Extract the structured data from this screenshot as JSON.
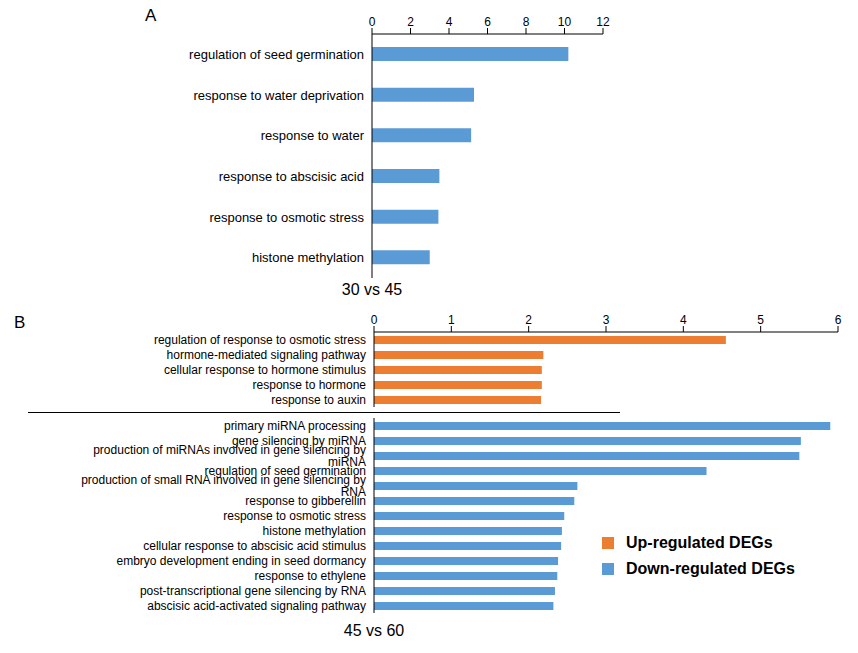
{
  "chart_data": [
    {
      "type": "bar",
      "orientation": "horizontal",
      "title": "A",
      "subtitle": "30 vs 45",
      "categories": [
        "regulation of seed germination",
        "response to water deprivation",
        "response to water",
        "response to abscisic acid",
        "response to osmotic stress",
        "histone methylation"
      ],
      "values": [
        10.2,
        5.3,
        5.15,
        3.5,
        3.45,
        3.0
      ],
      "color": "#5B9BD5",
      "xlim": [
        0,
        12
      ],
      "xticks": [
        0,
        2,
        4,
        6,
        8,
        10,
        12
      ]
    },
    {
      "type": "bar",
      "orientation": "horizontal",
      "title": "B",
      "subtitle": "45 vs 60",
      "categories": [
        "regulation of response to osmotic stress",
        "hormone-mediated signaling pathway",
        "cellular response to hormone stimulus",
        "response to hormone",
        "response to auxin",
        "primary miRNA processing",
        "gene silencing by miRNA",
        "production of miRNAs involved in gene silencing by miRNA",
        "regulation of seed germination",
        "production of small RNA involved in gene silencing by RNA",
        "response to gibberellin",
        "response to osmotic stress",
        "histone methylation",
        "cellular response to abscisic acid stimulus",
        "embryo development ending in seed dormancy",
        "response to ethylene",
        "post-transcriptional gene silencing by RNA",
        "abscisic acid-activated signaling pathway"
      ],
      "series": [
        {
          "name": "Up-regulated DEGs",
          "color": "#ED7D31",
          "values": [
            4.55,
            2.19,
            2.17,
            2.17,
            2.16,
            null,
            null,
            null,
            null,
            null,
            null,
            null,
            null,
            null,
            null,
            null,
            null,
            null
          ]
        },
        {
          "name": "Down-regulated DEGs",
          "color": "#5B9BD5",
          "values": [
            null,
            null,
            null,
            null,
            null,
            5.9,
            5.52,
            5.5,
            4.3,
            2.63,
            2.59,
            2.46,
            2.43,
            2.42,
            2.38,
            2.37,
            2.34,
            2.32
          ]
        }
      ],
      "xlim": [
        0,
        6
      ],
      "xticks": [
        0,
        1,
        2,
        3,
        4,
        5,
        6
      ],
      "legend": "lower right"
    }
  ]
}
